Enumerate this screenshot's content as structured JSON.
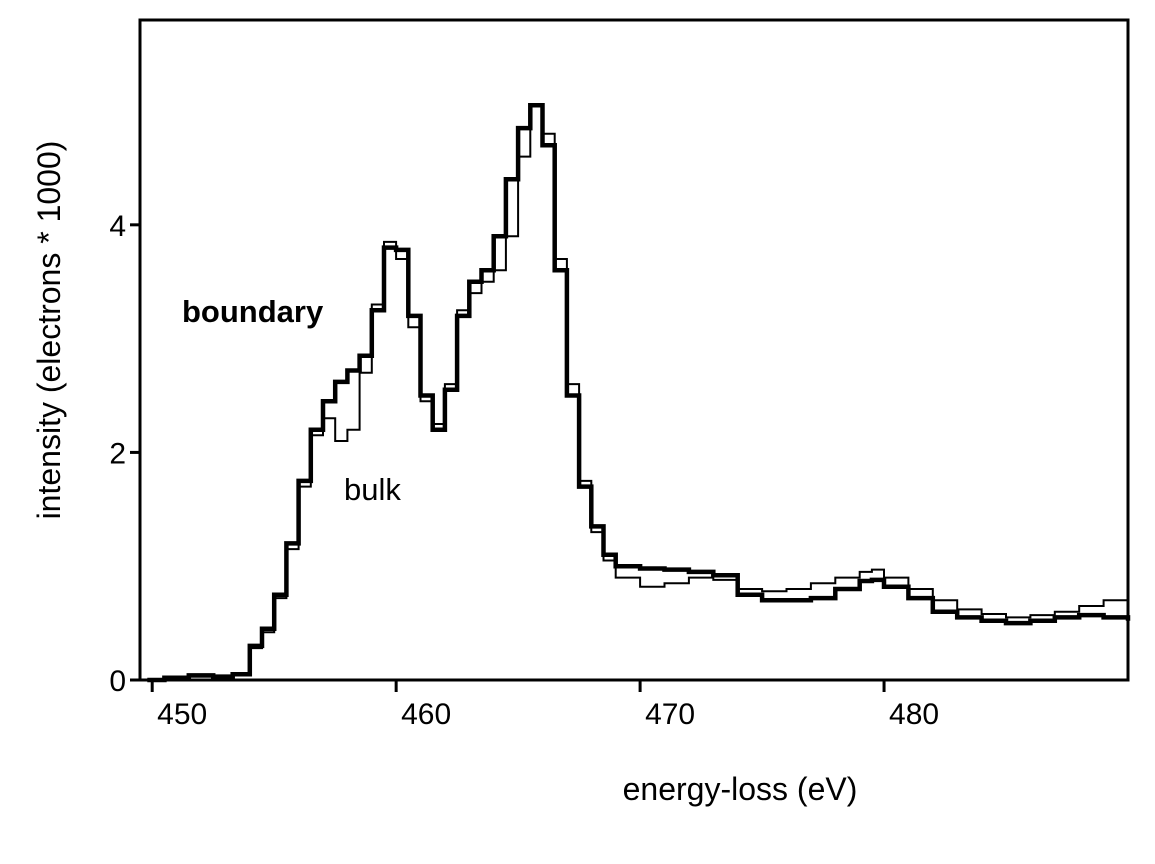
{
  "chart_data": {
    "type": "line",
    "title": "",
    "xlabel": "energy-loss (eV)",
    "ylabel": "intensity  (electrons * 1000)",
    "xlim": [
      449.5,
      490
    ],
    "ylim": [
      0,
      5.8
    ],
    "x_ticks": [
      450,
      460,
      470,
      480
    ],
    "x_tick_labels": [
      "450",
      "460",
      "470",
      "480"
    ],
    "y_ticks": [
      0,
      2,
      4
    ],
    "y_tick_labels": [
      "0",
      "2",
      "4"
    ],
    "grid": false,
    "legend": "none",
    "line_style": "step",
    "series": [
      {
        "name": "boundary",
        "color": "#000000",
        "points": [
          [
            449.8,
            0.0
          ],
          [
            450.5,
            0.02
          ],
          [
            451.5,
            0.04
          ],
          [
            452.5,
            0.03
          ],
          [
            453.3,
            0.05
          ],
          [
            454.0,
            0.3
          ],
          [
            454.5,
            0.45
          ],
          [
            455.0,
            0.75
          ],
          [
            455.5,
            1.2
          ],
          [
            456.0,
            1.75
          ],
          [
            456.5,
            2.2
          ],
          [
            457.0,
            2.45
          ],
          [
            457.5,
            2.62
          ],
          [
            458.0,
            2.72
          ],
          [
            458.5,
            2.85
          ],
          [
            459.0,
            3.25
          ],
          [
            459.5,
            3.8
          ],
          [
            460.0,
            3.78
          ],
          [
            460.5,
            3.2
          ],
          [
            461.0,
            2.5
          ],
          [
            461.5,
            2.2
          ],
          [
            462.0,
            2.55
          ],
          [
            462.5,
            3.2
          ],
          [
            463.0,
            3.5
          ],
          [
            463.5,
            3.6
          ],
          [
            464.0,
            3.9
          ],
          [
            464.5,
            4.4
          ],
          [
            465.0,
            4.85
          ],
          [
            465.5,
            5.05
          ],
          [
            466.0,
            4.7
          ],
          [
            466.5,
            3.6
          ],
          [
            467.0,
            2.5
          ],
          [
            467.5,
            1.7
          ],
          [
            468.0,
            1.35
          ],
          [
            468.5,
            1.1
          ],
          [
            469.0,
            1.0
          ],
          [
            470.0,
            0.98
          ],
          [
            471.0,
            0.97
          ],
          [
            472.0,
            0.95
          ],
          [
            473.0,
            0.92
          ],
          [
            474.0,
            0.75
          ],
          [
            475.0,
            0.7
          ],
          [
            476.0,
            0.7
          ],
          [
            477.0,
            0.72
          ],
          [
            478.0,
            0.8
          ],
          [
            479.0,
            0.87
          ],
          [
            479.5,
            0.88
          ],
          [
            480.0,
            0.82
          ],
          [
            481.0,
            0.72
          ],
          [
            482.0,
            0.6
          ],
          [
            483.0,
            0.55
          ],
          [
            484.0,
            0.52
          ],
          [
            485.0,
            0.5
          ],
          [
            486.0,
            0.52
          ],
          [
            487.0,
            0.55
          ],
          [
            488.0,
            0.57
          ],
          [
            489.0,
            0.55
          ],
          [
            490.0,
            0.52
          ]
        ]
      },
      {
        "name": "bulk",
        "color": "#000000",
        "points": [
          [
            449.8,
            0.0
          ],
          [
            450.5,
            0.01
          ],
          [
            451.5,
            0.03
          ],
          [
            452.5,
            0.02
          ],
          [
            453.3,
            0.04
          ],
          [
            454.0,
            0.28
          ],
          [
            454.5,
            0.42
          ],
          [
            455.0,
            0.72
          ],
          [
            455.5,
            1.15
          ],
          [
            456.0,
            1.7
          ],
          [
            456.5,
            2.15
          ],
          [
            457.0,
            2.3
          ],
          [
            457.5,
            2.1
          ],
          [
            458.0,
            2.2
          ],
          [
            458.5,
            2.7
          ],
          [
            459.0,
            3.3
          ],
          [
            459.5,
            3.85
          ],
          [
            460.0,
            3.7
          ],
          [
            460.5,
            3.1
          ],
          [
            461.0,
            2.45
          ],
          [
            461.5,
            2.25
          ],
          [
            462.0,
            2.6
          ],
          [
            462.5,
            3.25
          ],
          [
            463.0,
            3.4
          ],
          [
            463.5,
            3.5
          ],
          [
            464.0,
            3.6
          ],
          [
            464.5,
            3.9
          ],
          [
            465.0,
            4.6
          ],
          [
            465.5,
            5.05
          ],
          [
            466.0,
            4.8
          ],
          [
            466.5,
            3.7
          ],
          [
            467.0,
            2.6
          ],
          [
            467.5,
            1.75
          ],
          [
            468.0,
            1.3
          ],
          [
            468.5,
            1.05
          ],
          [
            469.0,
            0.9
          ],
          [
            470.0,
            0.82
          ],
          [
            471.0,
            0.85
          ],
          [
            472.0,
            0.9
          ],
          [
            473.0,
            0.88
          ],
          [
            474.0,
            0.8
          ],
          [
            475.0,
            0.78
          ],
          [
            476.0,
            0.8
          ],
          [
            477.0,
            0.85
          ],
          [
            478.0,
            0.9
          ],
          [
            479.0,
            0.95
          ],
          [
            479.5,
            0.97
          ],
          [
            480.0,
            0.9
          ],
          [
            481.0,
            0.8
          ],
          [
            482.0,
            0.7
          ],
          [
            483.0,
            0.62
          ],
          [
            484.0,
            0.58
          ],
          [
            485.0,
            0.55
          ],
          [
            486.0,
            0.57
          ],
          [
            487.0,
            0.6
          ],
          [
            488.0,
            0.65
          ],
          [
            489.0,
            0.7
          ],
          [
            490.0,
            0.7
          ]
        ]
      }
    ]
  }
}
